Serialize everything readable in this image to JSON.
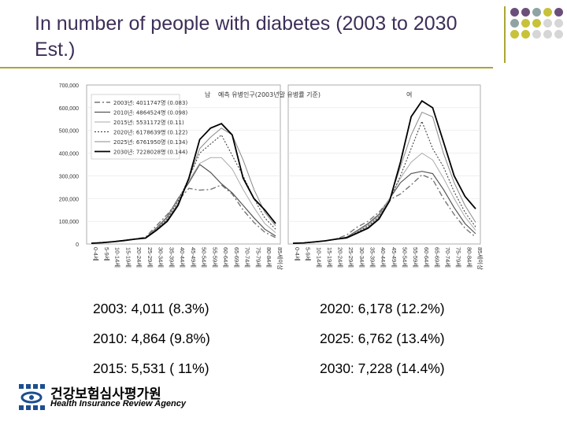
{
  "slide": {
    "title": "In number of people with diabetes (2003 to 2030 Est.)"
  },
  "stats": [
    {
      "text": "2003: 4,011 (8.3%)"
    },
    {
      "text": "2020: 6,178 (12.2%)"
    },
    {
      "text": "2010: 4,864 (9.8%)"
    },
    {
      "text": "2025: 6,762 (13.4%)"
    },
    {
      "text": "2015: 5,531 ( 11%)"
    },
    {
      "text": "2030: 7,228 (14.4%)"
    }
  ],
  "logo": {
    "korean": "건강보험심사평가원",
    "english": "Health Insurance Review Agency"
  },
  "colors": {
    "title": "#3d2e58",
    "rule": "#a9a634",
    "dots": [
      "#6b4f7a",
      "#6b4f7a",
      "#8fa3a4",
      "#c7c23a",
      "#6b4f7a",
      "#8fa3a4",
      "#c7c23a",
      "#c7c23a",
      "#d6d6d6",
      "#d6d6d6"
    ],
    "logo": "#1c4f8f"
  },
  "chart_data": {
    "type": "line",
    "title": "예측 유병인구(2003년말 유병률 기준)",
    "panels": [
      "남",
      "여"
    ],
    "yticks": [
      "700,000",
      "600,000",
      "500,000",
      "400,000",
      "300,000",
      "200,000",
      "100,000",
      "0"
    ],
    "ylim": [
      0,
      700000
    ],
    "categories": [
      "0-4세",
      "5-9세",
      "10-14세",
      "15-19세",
      "20-24세",
      "25-29세",
      "30-34세",
      "35-39세",
      "40-44세",
      "45-49세",
      "50-54세",
      "55-59세",
      "60-64세",
      "65-69세",
      "70-74세",
      "75-79세",
      "80-84세",
      "85세이상"
    ],
    "legend": [
      "2003년: 4011747명 (0.083)",
      "2010년: 4864524명 (0.098)",
      "2015년: 5531172명 (0.11)",
      "2020년: 6178639명 (0.122)",
      "2025년: 6761950명 (0.134)",
      "2030년: 7228028명 (0.144)"
    ],
    "legend_position": "top-left",
    "series_styles": [
      {
        "color": "#777777",
        "dash": "7,3,2,3",
        "width": 1.4
      },
      {
        "color": "#555555",
        "dash": "",
        "width": 1.2
      },
      {
        "color": "#aaaaaa",
        "dash": "",
        "width": 1.0
      },
      {
        "color": "#333333",
        "dash": "2,2",
        "width": 1.0
      },
      {
        "color": "#888888",
        "dash": "",
        "width": 1.0
      },
      {
        "color": "#000000",
        "dash": "",
        "width": 1.8
      }
    ],
    "series_male": [
      [
        3000,
        6000,
        10000,
        16000,
        22000,
        30000,
        80000,
        130000,
        190000,
        245000,
        237000,
        240000,
        260000,
        220000,
        150000,
        95000,
        52000,
        28000
      ],
      [
        3000,
        6000,
        10000,
        16000,
        22000,
        27000,
        70000,
        120000,
        200000,
        270000,
        350000,
        315000,
        265000,
        225000,
        170000,
        115000,
        65000,
        35000
      ],
      [
        3000,
        6000,
        10000,
        16000,
        22000,
        27000,
        66000,
        115000,
        195000,
        280000,
        355000,
        380000,
        380000,
        330000,
        240000,
        160000,
        90000,
        50000
      ],
      [
        3000,
        6000,
        10000,
        16000,
        22000,
        27000,
        64000,
        110000,
        190000,
        290000,
        400000,
        440000,
        480000,
        390000,
        300000,
        200000,
        115000,
        65000
      ],
      [
        3000,
        6000,
        10000,
        15000,
        21000,
        26000,
        62000,
        105000,
        180000,
        290000,
        420000,
        470000,
        510000,
        480000,
        370000,
        240000,
        140000,
        80000
      ],
      [
        3000,
        6000,
        10000,
        15000,
        21000,
        26000,
        60000,
        100000,
        170000,
        290000,
        460000,
        510000,
        530000,
        480000,
        290000,
        200000,
        150000,
        90000
      ]
    ],
    "series_female": [
      [
        3000,
        5000,
        9000,
        14000,
        22000,
        40000,
        75000,
        100000,
        140000,
        195000,
        220000,
        260000,
        305000,
        285000,
        200000,
        130000,
        70000,
        30000
      ],
      [
        3000,
        5000,
        9000,
        14000,
        22000,
        30000,
        60000,
        90000,
        130000,
        200000,
        270000,
        310000,
        320000,
        310000,
        240000,
        160000,
        90000,
        45000
      ],
      [
        3000,
        5000,
        9000,
        14000,
        22000,
        28000,
        55000,
        85000,
        125000,
        200000,
        290000,
        360000,
        400000,
        370000,
        290000,
        200000,
        120000,
        60000
      ],
      [
        3000,
        5000,
        9000,
        14000,
        22000,
        28000,
        52000,
        80000,
        120000,
        195000,
        300000,
        420000,
        540000,
        420000,
        340000,
        230000,
        140000,
        75000
      ],
      [
        3000,
        5000,
        9000,
        14000,
        21000,
        27000,
        50000,
        75000,
        115000,
        195000,
        340000,
        480000,
        580000,
        560000,
        400000,
        270000,
        170000,
        95000
      ],
      [
        3000,
        5000,
        9000,
        14000,
        21000,
        27000,
        48000,
        70000,
        110000,
        190000,
        360000,
        560000,
        630000,
        600000,
        450000,
        300000,
        210000,
        155000
      ]
    ]
  }
}
